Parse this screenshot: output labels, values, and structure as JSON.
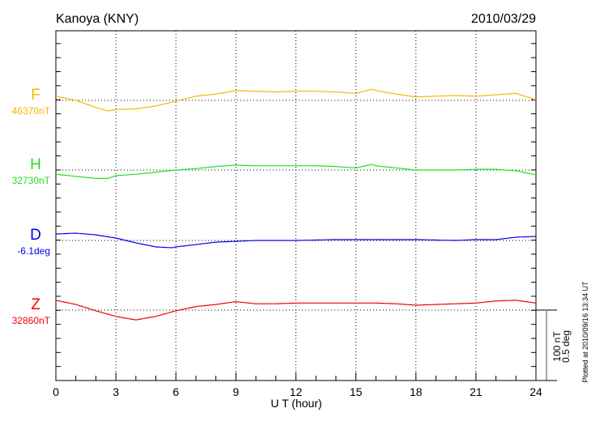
{
  "title": "Kanoya (KNY)",
  "date": "2010/03/29",
  "plotted_note": "Plotted at 2010/09/16 13:34 UT",
  "scale_bar": {
    "line1": "100 nT",
    "line2": "0.5 deg",
    "nT": 100,
    "deg": 0.5
  },
  "chart_data": {
    "type": "line",
    "xlabel": "U T (hour)",
    "xlim": [
      0,
      24
    ],
    "xticks": [
      "0",
      "3",
      "6",
      "9",
      "12",
      "15",
      "18",
      "21",
      "24"
    ],
    "grid": "dotted vertical every 3 hours, dotted baseline per series",
    "series": [
      {
        "name": "F",
        "baseline_label": "46370nT",
        "unit": "nT",
        "color": "#f5b800",
        "x": [
          0,
          1,
          2,
          2.6,
          3,
          4,
          5,
          6,
          7,
          8,
          9,
          10,
          11,
          12,
          13,
          14,
          15,
          15.8,
          16,
          17,
          18,
          19,
          20,
          21,
          22,
          23,
          24
        ],
        "y": [
          6,
          0,
          -10,
          -15,
          -13,
          -12,
          -8,
          -1,
          6,
          9,
          14,
          13,
          12,
          13,
          13,
          12,
          10,
          16,
          14,
          9,
          5,
          6,
          7,
          6,
          8,
          10,
          1
        ]
      },
      {
        "name": "H",
        "baseline_label": "32730nT",
        "unit": "nT",
        "color": "#22dd22",
        "x": [
          0,
          1,
          2,
          2.6,
          3,
          4,
          5,
          6,
          7,
          8,
          9,
          10,
          11,
          12,
          13,
          14,
          15,
          15.8,
          16,
          17,
          18,
          19,
          20,
          21,
          22,
          23,
          24
        ],
        "y": [
          -6,
          -9,
          -12,
          -12,
          -8,
          -6,
          -3,
          0,
          2,
          5,
          7,
          6,
          6,
          6,
          6,
          5,
          3,
          8,
          6,
          3,
          0,
          0,
          0,
          1,
          1,
          -1,
          -7
        ]
      },
      {
        "name": "D",
        "baseline_label": "-6.1deg",
        "unit": "deg",
        "color": "#0000ee",
        "x": [
          0,
          1,
          2,
          3,
          4,
          5,
          5.8,
          6,
          7,
          8,
          9,
          10,
          12,
          14,
          16,
          18,
          20,
          21,
          22,
          23,
          24
        ],
        "y": [
          0.046,
          0.052,
          0.04,
          0.017,
          -0.017,
          -0.046,
          -0.052,
          -0.046,
          -0.029,
          -0.012,
          -0.006,
          0,
          0,
          0.006,
          0.006,
          0.006,
          0,
          0.006,
          0.006,
          0.023,
          0.029
        ]
      },
      {
        "name": "Z",
        "baseline_label": "32860nT",
        "unit": "nT",
        "color": "#ee0000",
        "x": [
          0,
          1,
          2,
          3,
          4,
          5,
          6,
          7,
          8,
          9,
          10,
          11,
          12,
          13,
          14,
          15,
          16,
          17,
          18,
          19,
          20,
          21,
          22,
          23,
          24
        ],
        "y": [
          14,
          8,
          -1,
          -9,
          -14,
          -9,
          -1,
          5,
          8,
          12,
          9,
          9,
          10,
          10,
          10,
          10,
          10,
          9,
          7,
          8,
          9,
          10,
          13,
          14,
          10
        ]
      }
    ]
  }
}
